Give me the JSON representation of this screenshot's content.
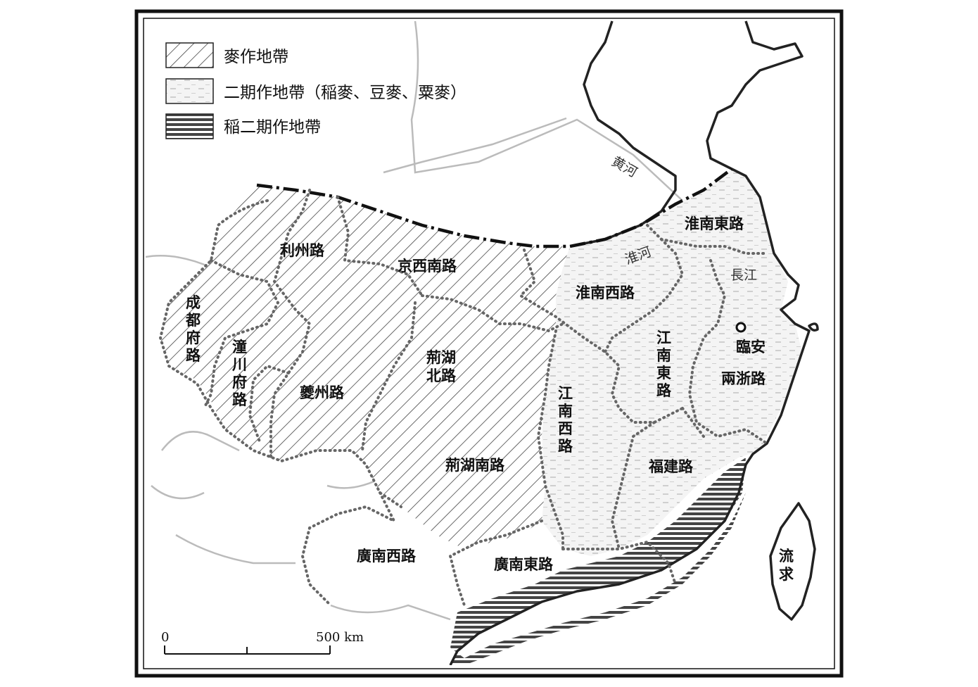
{
  "legend": {
    "items": [
      {
        "label": "麥作地帶",
        "pattern": "diagonal-hatch"
      },
      {
        "label": "二期作地帶（稲麥、豆麥、粟麥）",
        "pattern": "dashed-light"
      },
      {
        "label": "稲二期作地帶",
        "pattern": "horizontal-dark"
      }
    ]
  },
  "regions": {
    "lizhou": "利州路",
    "jingxi_nan": "京西南路",
    "chengdu_fu": [
      "成",
      "都",
      "府",
      "路"
    ],
    "tongchuan_fu": [
      "潼",
      "川",
      "府",
      "路"
    ],
    "kuizhou": "夔州路",
    "jinghu_bei": [
      "荊湖",
      "北路"
    ],
    "jinghu_nan": "荊湖南路",
    "huainan_dong": "淮南東路",
    "huainan_xi": "淮南西路",
    "jiangnan_dong": [
      "江",
      "南",
      "東",
      "路"
    ],
    "jiangnan_xi": [
      "江",
      "南",
      "西",
      "路"
    ],
    "liangzhe": "兩浙路",
    "fujian": "福建路",
    "guangnan_xi": "廣南西路",
    "guangnan_dong": "廣南東路",
    "liuqiu": [
      "流",
      "求"
    ]
  },
  "rivers": {
    "huanghe": "黄河",
    "huaihe": "淮河",
    "changjiang": "長江"
  },
  "cities": {
    "linan": "臨安"
  },
  "scale_bar": {
    "start": "0",
    "end": "500 km"
  },
  "colors": {
    "coast": "#222222",
    "border": "#666666",
    "river": "#bbbbbb",
    "hatch": "#444444",
    "double_crop_band": "#444444"
  }
}
